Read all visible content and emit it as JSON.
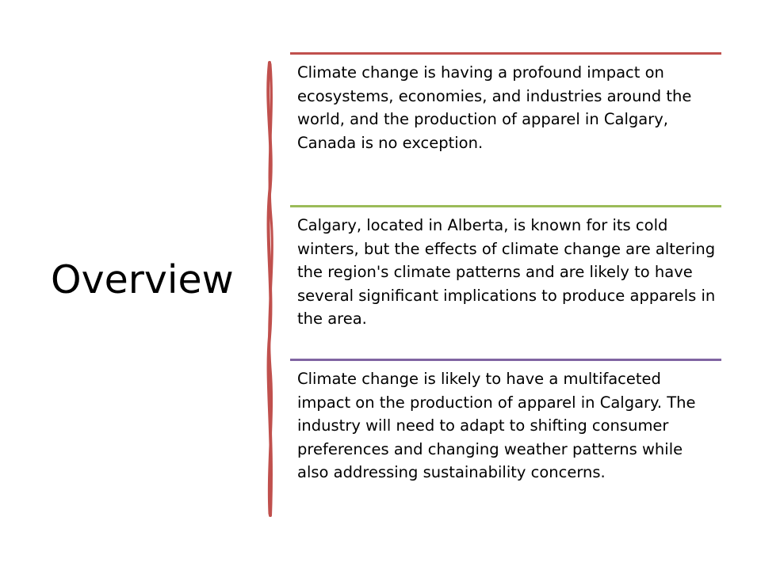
{
  "slide": {
    "title": "Overview",
    "accent_color": "#c0504d",
    "blocks": [
      {
        "rule_color": "#c0504d",
        "text": "Climate change is having a profound impact on ecosystems, economies, and industries around the world, and the production of apparel in Calgary, Canada is no exception."
      },
      {
        "rule_color": "#9bbb59",
        "text": "Calgary, located in Alberta, is known for its cold winters, but the effects of climate change are altering the region's climate patterns and are likely to have several significant implications to produce apparels in the area."
      },
      {
        "rule_color": "#8064a2",
        "text": "Climate change is likely to have a multifaceted impact on the production of apparel in Calgary. The industry will need to adapt to shifting consumer preferences and changing weather patterns while also addressing sustainability concerns."
      }
    ]
  }
}
